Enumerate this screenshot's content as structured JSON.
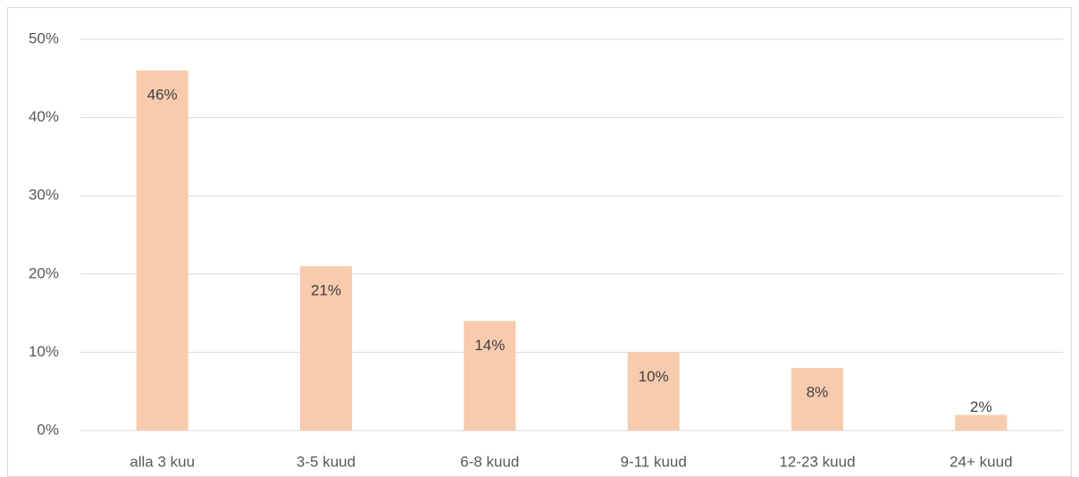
{
  "chart_data": {
    "type": "bar",
    "categories": [
      "alla 3 kuu",
      "3-5 kuud",
      "6-8 kuud",
      "9-11 kuud",
      "12-23 kuud",
      "24+ kuud"
    ],
    "values": [
      46,
      21,
      14,
      10,
      8,
      2
    ],
    "value_labels": [
      "46%",
      "21%",
      "14%",
      "10%",
      "8%",
      "2%"
    ],
    "color": "#f8cbad",
    "ylim": [
      0,
      50
    ],
    "yticks": [
      {
        "value": 0,
        "label": "0%"
      },
      {
        "value": 10,
        "label": "10%"
      },
      {
        "value": 20,
        "label": "20%"
      },
      {
        "value": 30,
        "label": "30%"
      },
      {
        "value": 40,
        "label": "40%"
      },
      {
        "value": 50,
        "label": "50%"
      }
    ],
    "grid": true
  }
}
